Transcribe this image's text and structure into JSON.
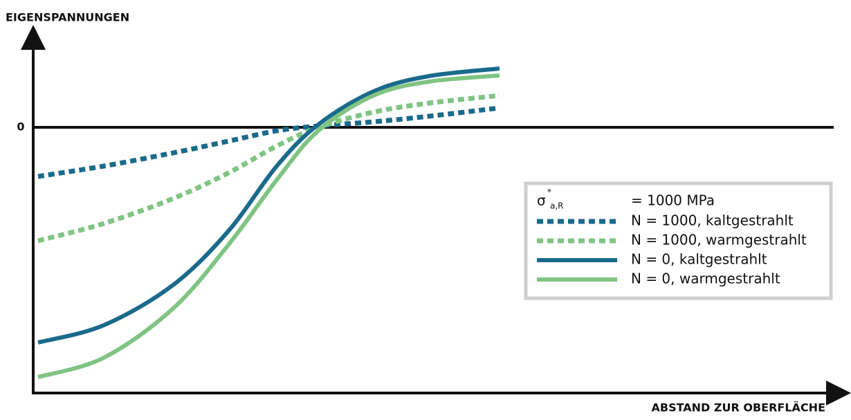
{
  "chart_data": {
    "type": "line",
    "ylabel": "EIGENSPANNUNGEN",
    "xlabel": "ABSTAND ZUR OBERFLÄCHE",
    "xlim": [
      0,
      1182
    ],
    "ylim": [
      -384,
      132
    ],
    "yticks": [
      0
    ],
    "legend_header": {
      "symbol": "σ",
      "superscript": "*",
      "subscript": "a,R",
      "text": "= 1000 MPa"
    },
    "legend": "right",
    "x": [
      7,
      102,
      202,
      282,
      352,
      412,
      492,
      572,
      674
    ],
    "series": [
      {
        "name": "N = 1000, kaltgestrahlt",
        "color": "#1a6a8c",
        "style": "dotted",
        "values": [
          -71,
          -56,
          -37,
          -20,
          -5,
          2,
          8,
          16,
          28
        ]
      },
      {
        "name": "N = 1000, warmgestrahlt",
        "color": "#80c483",
        "style": "dotted",
        "values": [
          -164,
          -139,
          -103,
          -66,
          -27,
          0,
          22,
          35,
          46
        ]
      },
      {
        "name": "N = 0, kaltgestrahlt",
        "color": "#1a6a8c",
        "style": "solid",
        "values": [
          -311,
          -286,
          -228,
          -150,
          -56,
          4,
          52,
          74,
          85
        ]
      },
      {
        "name": "N = 0, warmgestrahlt",
        "color": "#80c483",
        "style": "solid",
        "values": [
          -361,
          -333,
          -262,
          -170,
          -76,
          -5,
          46,
          66,
          75
        ]
      }
    ]
  }
}
